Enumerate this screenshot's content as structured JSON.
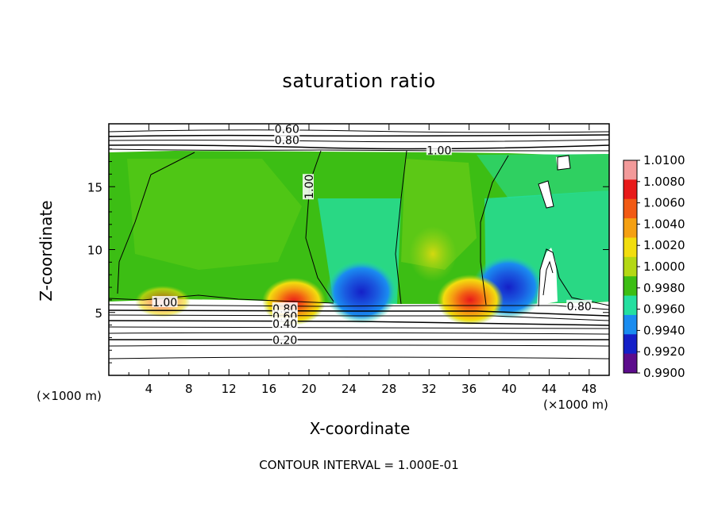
{
  "chart_data": {
    "type": "heatmap",
    "title": "saturation ratio",
    "xlabel": "X-coordinate",
    "ylabel": "Z-coordinate",
    "x_unit": "(×1000 m)",
    "footnote": "CONTOUR INTERVAL = 1.000E-01",
    "xlim": [
      0,
      50
    ],
    "ylim": [
      0,
      20
    ],
    "x_ticks": [
      4,
      8,
      12,
      16,
      20,
      24,
      28,
      32,
      36,
      40,
      44,
      48
    ],
    "y_ticks": [
      5,
      10,
      15
    ],
    "colorbar": {
      "ticks": [
        "1.0100",
        "1.0080",
        "1.0060",
        "1.0040",
        "1.0020",
        "1.0000",
        "0.9980",
        "0.9960",
        "0.9940",
        "0.9920",
        "0.9900"
      ],
      "colors": [
        "#f29a9a",
        "#e81a1a",
        "#f25a14",
        "#f5a012",
        "#f2dd0e",
        "#b4d814",
        "#3cbe14",
        "#24dfa0",
        "#1a8cf0",
        "#1420c8",
        "#5c0c8c"
      ],
      "min": 0.99,
      "max": 1.01
    },
    "contour_labels": [
      {
        "text": "0.60",
        "x": 17.8,
        "z": 19.6
      },
      {
        "text": "0.80",
        "x": 17.8,
        "z": 18.7
      },
      {
        "text": "1.00",
        "x": 33.0,
        "z": 17.9
      },
      {
        "text": "1.00",
        "x": 20.0,
        "z": 15.0
      },
      {
        "text": "1.00",
        "x": 5.6,
        "z": 5.8
      },
      {
        "text": "0.80",
        "x": 17.6,
        "z": 5.3
      },
      {
        "text": "0.60",
        "x": 17.6,
        "z": 4.7
      },
      {
        "text": "0.40",
        "x": 17.6,
        "z": 4.1
      },
      {
        "text": "0.20",
        "x": 17.6,
        "z": 2.8
      },
      {
        "text": "0.80",
        "x": 47.0,
        "z": 5.5
      }
    ]
  }
}
